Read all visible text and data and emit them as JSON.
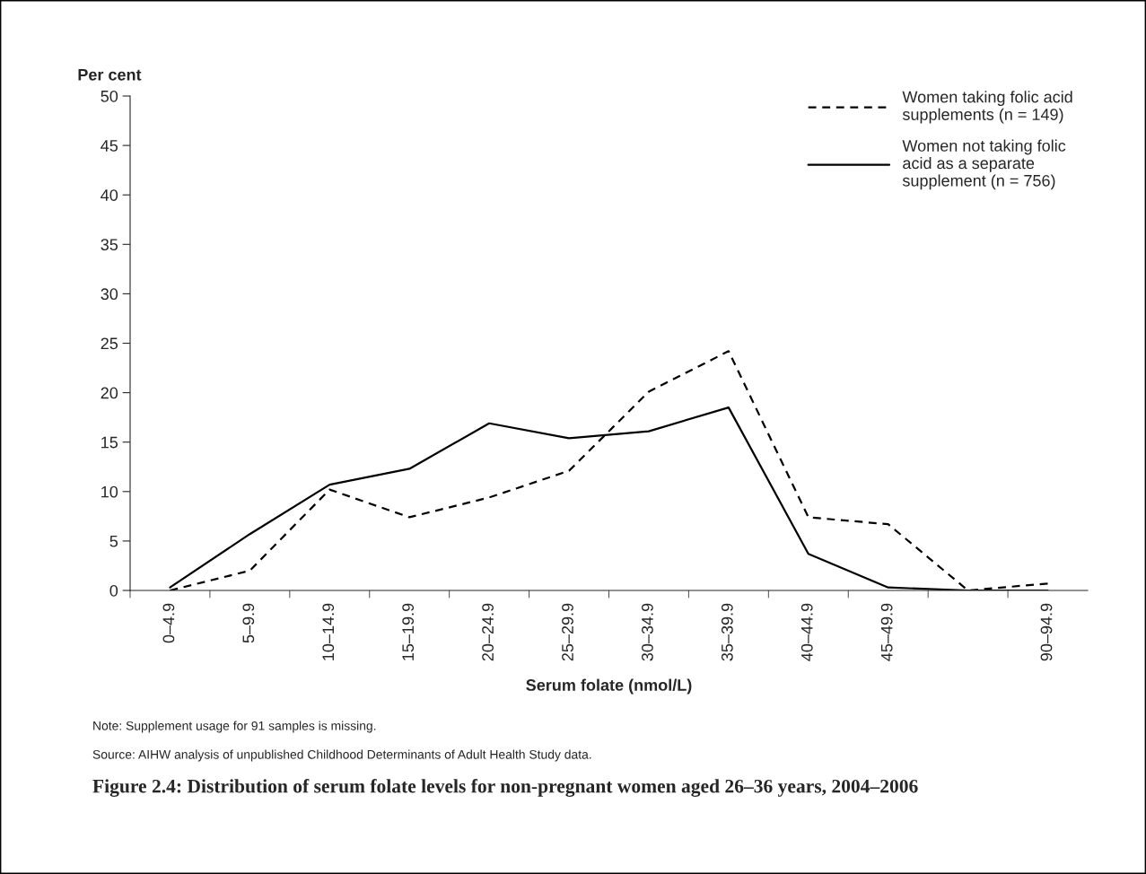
{
  "chart_data": {
    "type": "line",
    "title": "Figure 2.4: Distribution of serum folate levels for non-pregnant women aged 26–36 years, 2004–2006",
    "xlabel": "Serum folate (nmol/L)",
    "ylabel": "Per cent",
    "categories": [
      "0–4.9",
      "5–9.9",
      "10–14.9",
      "15–19.9",
      "20–24.9",
      "25–29.9",
      "30–34.9",
      "35–39.9",
      "40–44.9",
      "45–49.9",
      null,
      "90–94.9"
    ],
    "series": [
      {
        "name": "Women taking folic acid supplements (n = 149)",
        "color": "#000000",
        "line_style": "dashed",
        "values": [
          0,
          2.0,
          10.2,
          7.4,
          9.4,
          12.1,
          20.1,
          24.2,
          7.4,
          6.7,
          0,
          0.7
        ]
      },
      {
        "name": "Women not taking folic acid as a separate supplement (n = 756)",
        "color": "#000000",
        "line_style": "solid",
        "values": [
          0.3,
          5.7,
          10.7,
          12.3,
          16.9,
          15.4,
          16.1,
          18.5,
          3.7,
          0.3,
          0,
          0
        ]
      }
    ],
    "ylim": [
      0,
      50
    ],
    "yticks": [
      0,
      5,
      10,
      15,
      20,
      25,
      30,
      35,
      40,
      45,
      50
    ],
    "grid": false,
    "legend": "top right",
    "marker": "none",
    "annotations": [
      "Note: Supplement usage for 91 samples is missing.",
      "Source: AIHW analysis of unpublished Childhood Determinants of Adult Health Study data."
    ]
  }
}
